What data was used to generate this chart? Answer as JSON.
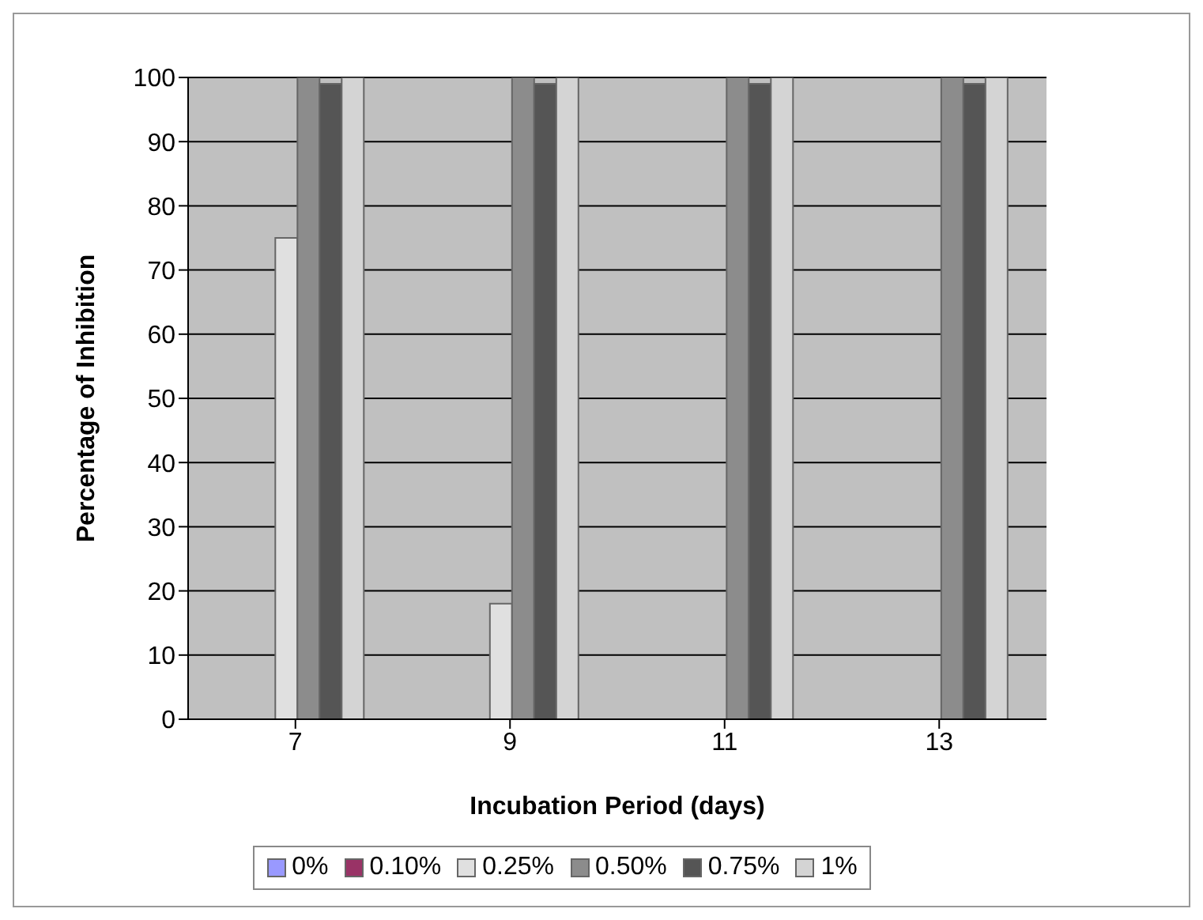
{
  "chart_data": {
    "type": "bar",
    "xlabel": "Incubation Period (days)",
    "ylabel": "Percentage of Inhibition",
    "categories": [
      "7",
      "9",
      "11",
      "13"
    ],
    "series": [
      {
        "name": "0%",
        "color": "#9999ff",
        "values": [
          0,
          0,
          0,
          0
        ]
      },
      {
        "name": "0.10%",
        "color": "#993366",
        "values": [
          0,
          0,
          0,
          0
        ]
      },
      {
        "name": "0.25%",
        "color": "#e0e0e0",
        "values": [
          75,
          18,
          0,
          0
        ]
      },
      {
        "name": "0.50%",
        "color": "#8c8c8c",
        "values": [
          100,
          100,
          100,
          100
        ]
      },
      {
        "name": "0.75%",
        "color": "#555555",
        "values": [
          99,
          99,
          99,
          99
        ]
      },
      {
        "name": "1%",
        "color": "#d4d4d4",
        "values": [
          100,
          100,
          100,
          100
        ]
      }
    ],
    "ylim": [
      0,
      100
    ],
    "yticks": [
      0,
      10,
      20,
      30,
      40,
      50,
      60,
      70,
      80,
      90,
      100
    ],
    "grid": "y",
    "legend": "bottom"
  }
}
